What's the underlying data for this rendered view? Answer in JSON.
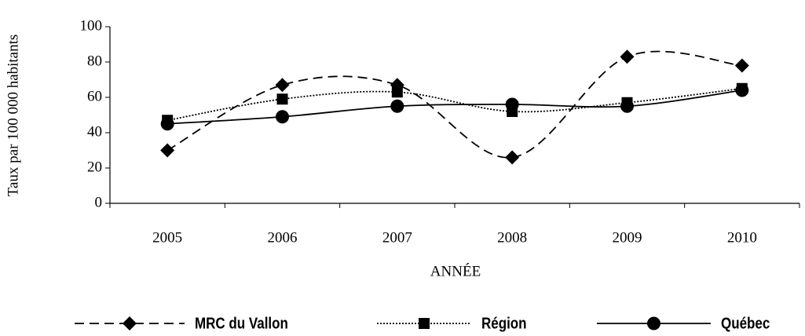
{
  "chart_data": {
    "type": "line",
    "x_label": "ANNÉE",
    "y_label": "Taux par 100 000 habitants",
    "categories": [
      "2005",
      "2006",
      "2007",
      "2008",
      "2009",
      "2010"
    ],
    "series": [
      {
        "name": "MRC du Vallon",
        "color": "#000000",
        "line_style": "dashed",
        "marker": "diamond",
        "values": [
          30,
          67,
          67,
          26,
          83,
          78
        ]
      },
      {
        "name": "Région",
        "color": "#000000",
        "line_style": "dotted",
        "marker": "square",
        "values": [
          47,
          59,
          63,
          52,
          57,
          65
        ]
      },
      {
        "name": "Québec",
        "color": "#000000",
        "line_style": "solid",
        "marker": "circle",
        "values": [
          45,
          49,
          55,
          56,
          55,
          64
        ]
      }
    ],
    "smooth": true,
    "ylim": [
      0,
      100
    ],
    "yticks": [
      0,
      20,
      40,
      60,
      80,
      100
    ],
    "grid": false,
    "legend": "bottom"
  }
}
